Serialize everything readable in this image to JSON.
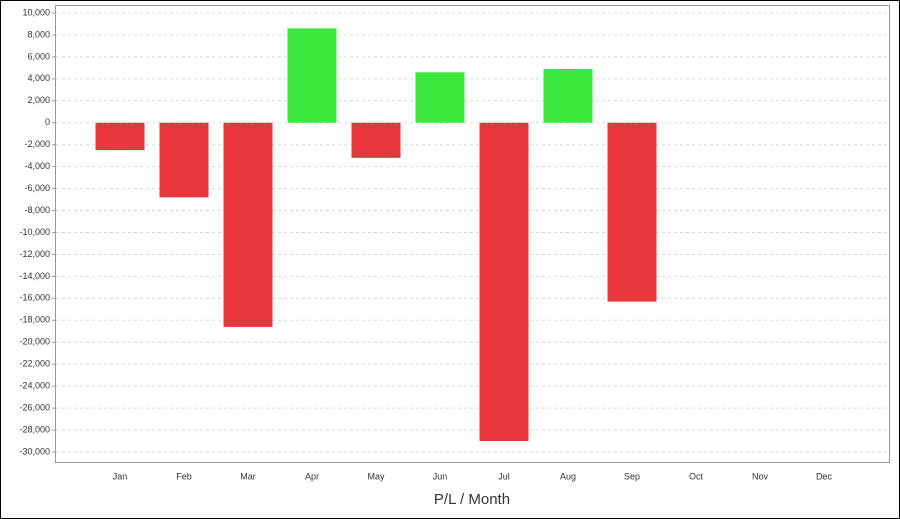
{
  "chart_data": {
    "type": "bar",
    "title": "P/L / Month",
    "categories": [
      "Jan",
      "Feb",
      "Mar",
      "Apr",
      "May",
      "Jun",
      "Jul",
      "Aug",
      "Sep",
      "Oct",
      "Nov",
      "Dec"
    ],
    "values": [
      -2500,
      -6800,
      -18600,
      8600,
      -3200,
      4600,
      -29000,
      4900,
      -16300,
      null,
      null,
      null
    ],
    "positive_color": "#3de83d",
    "negative_color": "#e8383d",
    "ylim": [
      -30000,
      10000
    ],
    "yticks": [
      {
        "value": 10000,
        "label": "10,000"
      },
      {
        "value": 8000,
        "label": "8,000"
      },
      {
        "value": 6000,
        "label": "6,000"
      },
      {
        "value": 4000,
        "label": "4,000"
      },
      {
        "value": 2000,
        "label": "2,000"
      },
      0,
      {
        "value": -2000,
        "label": "-2,000"
      },
      {
        "value": -4000,
        "label": "-4,000"
      },
      {
        "value": -6000,
        "label": "-6,000"
      },
      {
        "value": -8000,
        "label": "-8,000"
      },
      {
        "value": -10000,
        "label": "-10,000"
      },
      {
        "value": -12000,
        "label": "-12,000"
      },
      {
        "value": -14000,
        "label": "-14,000"
      },
      {
        "value": -16000,
        "label": "-16,000"
      },
      {
        "value": -18000,
        "label": "-18,000"
      },
      {
        "value": -20000,
        "label": "-20,000"
      },
      {
        "value": -22000,
        "label": "-22,000"
      },
      {
        "value": -24000,
        "label": "-24,000"
      },
      {
        "value": -26000,
        "label": "-26,000"
      },
      {
        "value": -28000,
        "label": "-28,000"
      },
      {
        "value": -30000,
        "label": "-30,000"
      }
    ],
    "grid": true
  }
}
